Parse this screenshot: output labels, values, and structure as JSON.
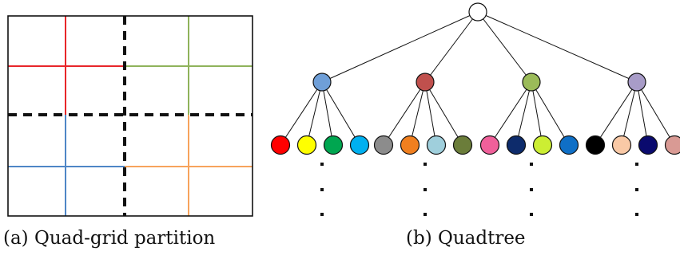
{
  "captions": {
    "a": "(a) Quad-grid partition",
    "b": "(b) Quadtree"
  },
  "colors": {
    "grid_border": "#111111",
    "dashed_divider": "#111111",
    "quadrant_top_left": "#e8262a",
    "quadrant_top_right": "#8fb35b",
    "quadrant_bottom_left": "#4f86c6",
    "quadrant_bottom_right": "#f7a35c"
  },
  "tree": {
    "root": {
      "color": "#ffffff"
    },
    "children": [
      {
        "color": "#6f9fd8",
        "leaves": [
          "#ff0000",
          "#ffff00",
          "#00a650",
          "#00b0f0"
        ]
      },
      {
        "color": "#c0504d",
        "leaves": [
          "#8c8c8c",
          "#f07f1f",
          "#9fcfdc",
          "#6b7d3a"
        ]
      },
      {
        "color": "#9bbb59",
        "leaves": [
          "#f0609a",
          "#0d2b6b",
          "#ccee33",
          "#0f6fc6"
        ]
      },
      {
        "color": "#a89cc8",
        "leaves": [
          "#000000",
          "#f9c9a6",
          "#0a0a6e",
          "#d99a94"
        ]
      }
    ],
    "ellipsis_columns": 4
  }
}
